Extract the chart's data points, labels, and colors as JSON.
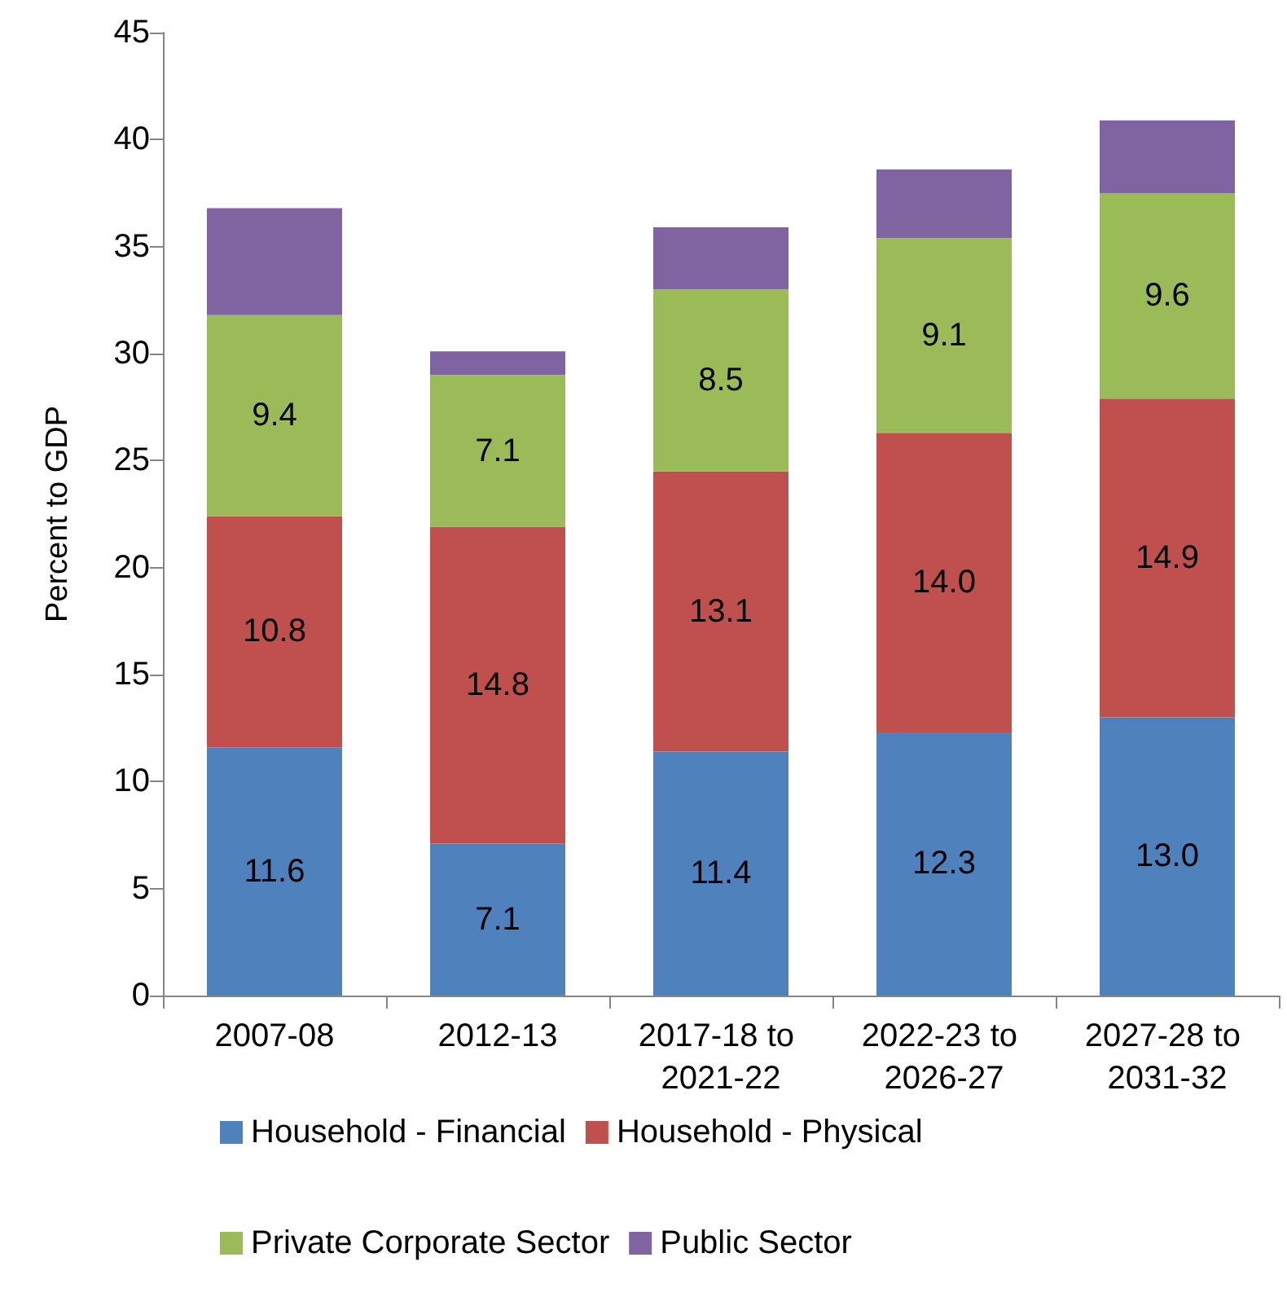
{
  "chart_data": {
    "type": "bar",
    "stacked": true,
    "ylabel": "Percent to GDP",
    "categories": [
      "2007-08",
      "2012-13",
      "2017-18 to 2021-22",
      "2022-23 to 2026-27",
      "2027-28 to 2031-32"
    ],
    "series": [
      {
        "name": "Household - Financial",
        "color": "#4f81bd",
        "values": [
          11.6,
          7.1,
          11.4,
          12.3,
          13.0
        ],
        "value_labels": [
          "11.6",
          "7.1",
          "11.4",
          "12.3",
          "13.0"
        ]
      },
      {
        "name": "Household - Physical",
        "color": "#c0504d",
        "values": [
          10.8,
          14.8,
          13.1,
          14.0,
          14.9
        ],
        "value_labels": [
          "10.8",
          "14.8",
          "13.1",
          "14.0",
          "14.9"
        ]
      },
      {
        "name": "Private Corporate Sector",
        "color": "#9bbb59",
        "values": [
          9.4,
          7.1,
          8.5,
          9.1,
          9.6
        ],
        "value_labels": [
          "9.4",
          "7.1",
          "8.5",
          "9.1",
          "9.6"
        ]
      },
      {
        "name": "Public Sector",
        "color": "#8064a2",
        "values": [
          5.0,
          1.1,
          2.9,
          3.2,
          3.4
        ]
      }
    ],
    "ylim": [
      0,
      45
    ],
    "yticks": [
      0,
      5,
      10,
      15,
      20,
      25,
      30,
      35,
      40,
      45
    ],
    "grid": false,
    "legend": "bottom"
  }
}
